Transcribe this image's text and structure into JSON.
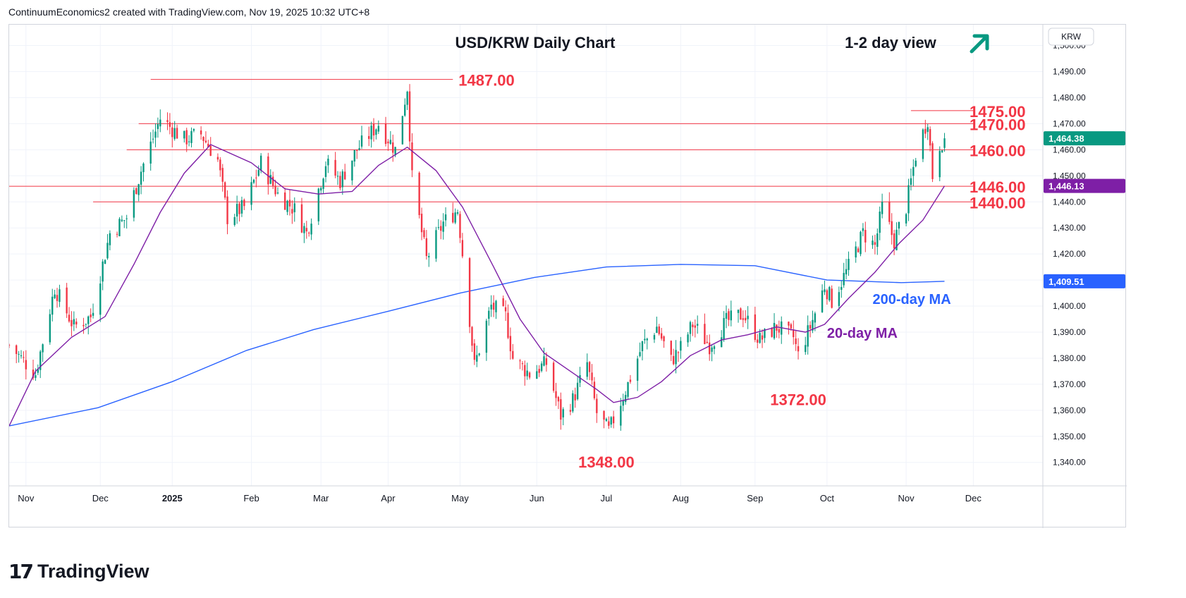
{
  "header": {
    "credit": "ContinuumEconomics2 created with TradingView.com, Nov 19, 2025 10:32 UTC+8"
  },
  "footer": {
    "logo_text": "TradingView",
    "logo_mark": "17"
  },
  "colors": {
    "up": "#089981",
    "down": "#f23645",
    "level": "#f23645",
    "ma20": "#7e1fa6",
    "ma200": "#2962ff",
    "grid": "#f0f3fa",
    "label_bg": "#f23645"
  },
  "chart_data": {
    "type": "candlestick",
    "title": "USD/KRW Daily Chart",
    "subtitle": "1-2 day view",
    "bias_icon": "arrow-up-right-icon",
    "currency_label": "KRW",
    "ylim": [
      1331,
      1508
    ],
    "y_ticks": [
      1340,
      1350,
      1360,
      1370,
      1380,
      1390,
      1400,
      1410,
      1420,
      1430,
      1440,
      1450,
      1460,
      1470,
      1480,
      1490,
      1500
    ],
    "y_tick_labels": [
      "1,340.00",
      "1,350.00",
      "1,360.00",
      "1,370.00",
      "1,380.00",
      "1,390.00",
      "1,400.00",
      "1,410.00",
      "1,420.00",
      "1,430.00",
      "1,440.00",
      "1,450.00",
      "1,460.00",
      "1,470.00",
      "1,480.00",
      "1,490.00",
      "1,500.00"
    ],
    "x_labels": [
      {
        "label": "Nov",
        "x": "2024-11-01",
        "bold": false
      },
      {
        "label": "Dec",
        "x": "2024-12-02",
        "bold": false
      },
      {
        "label": "2025",
        "x": "2025-01-01",
        "bold": true
      },
      {
        "label": "Feb",
        "x": "2025-02-03",
        "bold": false
      },
      {
        "label": "Mar",
        "x": "2025-03-04",
        "bold": false
      },
      {
        "label": "Apr",
        "x": "2025-04-01",
        "bold": false
      },
      {
        "label": "May",
        "x": "2025-05-01",
        "bold": false
      },
      {
        "label": "Jun",
        "x": "2025-06-02",
        "bold": false
      },
      {
        "label": "Jul",
        "x": "2025-07-01",
        "bold": false
      },
      {
        "label": "Aug",
        "x": "2025-08-01",
        "bold": false
      },
      {
        "label": "Sep",
        "x": "2025-09-01",
        "bold": false
      },
      {
        "label": "Oct",
        "x": "2025-10-01",
        "bold": false
      },
      {
        "label": "Nov",
        "x": "2025-11-03",
        "bold": false
      },
      {
        "label": "Dec",
        "x": "2025-12-01",
        "bold": false
      }
    ],
    "x_range": [
      "2024-10-25",
      "2025-12-30"
    ],
    "last_bar": "2025-11-19",
    "anchors": [
      {
        "date": "2024-10-25",
        "close": 1385
      },
      {
        "date": "2024-11-05",
        "close": 1374
      },
      {
        "date": "2024-11-13",
        "close": 1407
      },
      {
        "date": "2024-11-21",
        "close": 1392
      },
      {
        "date": "2024-11-28",
        "close": 1396
      },
      {
        "date": "2024-12-06",
        "close": 1428
      },
      {
        "date": "2024-12-13",
        "close": 1434
      },
      {
        "date": "2024-12-19",
        "close": 1452
      },
      {
        "date": "2024-12-27",
        "close": 1472
      },
      {
        "date": "2025-01-06",
        "close": 1464
      },
      {
        "date": "2025-01-13",
        "close": 1466
      },
      {
        "date": "2025-01-20",
        "close": 1456
      },
      {
        "date": "2025-01-24",
        "close": 1434
      },
      {
        "date": "2025-01-31",
        "close": 1438
      },
      {
        "date": "2025-02-07",
        "close": 1455
      },
      {
        "date": "2025-02-14",
        "close": 1443
      },
      {
        "date": "2025-02-21",
        "close": 1437
      },
      {
        "date": "2025-02-26",
        "close": 1428
      },
      {
        "date": "2025-03-06",
        "close": 1455
      },
      {
        "date": "2025-03-12",
        "close": 1448
      },
      {
        "date": "2025-03-19",
        "close": 1460
      },
      {
        "date": "2025-03-28",
        "close": 1470
      },
      {
        "date": "2025-04-04",
        "close": 1460
      },
      {
        "date": "2025-04-09",
        "close": 1484
      },
      {
        "date": "2025-04-11",
        "close": 1449
      },
      {
        "date": "2025-04-17",
        "close": 1418
      },
      {
        "date": "2025-04-24",
        "close": 1432
      },
      {
        "date": "2025-04-30",
        "close": 1437
      },
      {
        "date": "2025-05-05",
        "close": 1395
      },
      {
        "date": "2025-05-07",
        "close": 1377
      },
      {
        "date": "2025-05-14",
        "close": 1400
      },
      {
        "date": "2025-05-20",
        "close": 1396
      },
      {
        "date": "2025-05-23",
        "close": 1380
      },
      {
        "date": "2025-05-30",
        "close": 1374
      },
      {
        "date": "2025-06-06",
        "close": 1378
      },
      {
        "date": "2025-06-12",
        "close": 1358
      },
      {
        "date": "2025-06-17",
        "close": 1364
      },
      {
        "date": "2025-06-23",
        "close": 1378
      },
      {
        "date": "2025-06-27",
        "close": 1359
      },
      {
        "date": "2025-07-02",
        "close": 1352
      },
      {
        "date": "2025-07-10",
        "close": 1370
      },
      {
        "date": "2025-07-16",
        "close": 1385
      },
      {
        "date": "2025-07-22",
        "close": 1392
      },
      {
        "date": "2025-07-28",
        "close": 1379
      },
      {
        "date": "2025-08-01",
        "close": 1384
      },
      {
        "date": "2025-08-06",
        "close": 1393
      },
      {
        "date": "2025-08-13",
        "close": 1385
      },
      {
        "date": "2025-08-20",
        "close": 1394
      },
      {
        "date": "2025-08-27",
        "close": 1397
      },
      {
        "date": "2025-09-03",
        "close": 1387
      },
      {
        "date": "2025-09-10",
        "close": 1392
      },
      {
        "date": "2025-09-17",
        "close": 1388
      },
      {
        "date": "2025-09-19",
        "close": 1381
      },
      {
        "date": "2025-09-24",
        "close": 1392
      },
      {
        "date": "2025-09-30",
        "close": 1408
      },
      {
        "date": "2025-10-03",
        "close": 1402
      },
      {
        "date": "2025-10-10",
        "close": 1415
      },
      {
        "date": "2025-10-16",
        "close": 1428
      },
      {
        "date": "2025-10-21",
        "close": 1423
      },
      {
        "date": "2025-10-24",
        "close": 1438
      },
      {
        "date": "2025-10-29",
        "close": 1425
      },
      {
        "date": "2025-11-03",
        "close": 1438
      },
      {
        "date": "2025-11-07",
        "close": 1458
      },
      {
        "date": "2025-11-12",
        "close": 1472
      },
      {
        "date": "2025-11-14",
        "close": 1450
      },
      {
        "date": "2025-11-17",
        "close": 1462
      },
      {
        "date": "2025-11-19",
        "close": 1464.38
      }
    ],
    "ma20": [
      {
        "date": "2024-10-25",
        "value": 1354
      },
      {
        "date": "2024-11-05",
        "value": 1375
      },
      {
        "date": "2024-11-20",
        "value": 1388
      },
      {
        "date": "2024-12-04",
        "value": 1396
      },
      {
        "date": "2024-12-16",
        "value": 1416
      },
      {
        "date": "2024-12-27",
        "value": 1436
      },
      {
        "date": "2025-01-06",
        "value": 1451
      },
      {
        "date": "2025-01-17",
        "value": 1462
      },
      {
        "date": "2025-02-03",
        "value": 1455
      },
      {
        "date": "2025-02-17",
        "value": 1445
      },
      {
        "date": "2025-03-03",
        "value": 1443
      },
      {
        "date": "2025-03-17",
        "value": 1444
      },
      {
        "date": "2025-03-28",
        "value": 1454
      },
      {
        "date": "2025-04-09",
        "value": 1461
      },
      {
        "date": "2025-04-21",
        "value": 1452
      },
      {
        "date": "2025-05-02",
        "value": 1438
      },
      {
        "date": "2025-05-15",
        "value": 1415
      },
      {
        "date": "2025-05-26",
        "value": 1395
      },
      {
        "date": "2025-06-05",
        "value": 1382
      },
      {
        "date": "2025-06-16",
        "value": 1375
      },
      {
        "date": "2025-06-27",
        "value": 1368
      },
      {
        "date": "2025-07-04",
        "value": 1363
      },
      {
        "date": "2025-07-14",
        "value": 1365
      },
      {
        "date": "2025-07-24",
        "value": 1371
      },
      {
        "date": "2025-08-05",
        "value": 1381
      },
      {
        "date": "2025-08-18",
        "value": 1387
      },
      {
        "date": "2025-08-29",
        "value": 1389
      },
      {
        "date": "2025-09-10",
        "value": 1392
      },
      {
        "date": "2025-09-22",
        "value": 1390
      },
      {
        "date": "2025-09-30",
        "value": 1393
      },
      {
        "date": "2025-10-10",
        "value": 1403
      },
      {
        "date": "2025-10-21",
        "value": 1413
      },
      {
        "date": "2025-10-31",
        "value": 1424
      },
      {
        "date": "2025-11-10",
        "value": 1433
      },
      {
        "date": "2025-11-19",
        "value": 1446.13
      }
    ],
    "ma200": [
      {
        "date": "2024-10-25",
        "value": 1354
      },
      {
        "date": "2024-12-01",
        "value": 1361
      },
      {
        "date": "2025-01-01",
        "value": 1371
      },
      {
        "date": "2025-02-01",
        "value": 1383
      },
      {
        "date": "2025-03-01",
        "value": 1391
      },
      {
        "date": "2025-04-01",
        "value": 1398
      },
      {
        "date": "2025-05-01",
        "value": 1405
      },
      {
        "date": "2025-06-01",
        "value": 1411
      },
      {
        "date": "2025-07-01",
        "value": 1415
      },
      {
        "date": "2025-08-01",
        "value": 1416
      },
      {
        "date": "2025-09-01",
        "value": 1415.5
      },
      {
        "date": "2025-10-01",
        "value": 1410
      },
      {
        "date": "2025-11-01",
        "value": 1409
      },
      {
        "date": "2025-11-19",
        "value": 1409.51
      }
    ],
    "series": [
      {
        "name": "20-day MA",
        "last_value": 1446.13,
        "last_label": "1,446.13",
        "color": "#7e1fa6"
      },
      {
        "name": "200-day MA",
        "last_value": 1409.51,
        "last_label": "1,409.51",
        "color": "#2962ff"
      }
    ],
    "price_label": {
      "value": 1464.38,
      "label": "1,464.38"
    },
    "levels": [
      {
        "value": 1487.0,
        "label": "1487.00",
        "from": "2024-12-23",
        "to": "2025-04-28"
      },
      {
        "value": 1475.0,
        "label": "1475.00",
        "from": "2025-11-05",
        "to": "2025-12-01"
      },
      {
        "value": 1470.0,
        "label": "1470.00",
        "from": "2024-12-18",
        "to": "2025-12-01"
      },
      {
        "value": 1460.0,
        "label": "1460.00",
        "from": "2024-12-13",
        "to": "2025-12-01"
      },
      {
        "value": 1446.0,
        "label": "1446.00",
        "from": "2024-10-25",
        "to": "2025-12-01"
      },
      {
        "value": 1440.0,
        "label": "1440.00",
        "from": "2024-11-29",
        "to": "2025-12-01"
      }
    ],
    "point_labels": [
      {
        "label": "1372.00",
        "value": 1372.0,
        "date": "2025-09-19"
      },
      {
        "label": "1348.00",
        "value": 1348.0,
        "date": "2025-07-01"
      }
    ],
    "ma_labels": [
      {
        "label": "200-day MA",
        "date": "2025-10-20",
        "value": 1403
      },
      {
        "label": "20-day MA",
        "date": "2025-10-01",
        "value": 1390
      }
    ]
  }
}
